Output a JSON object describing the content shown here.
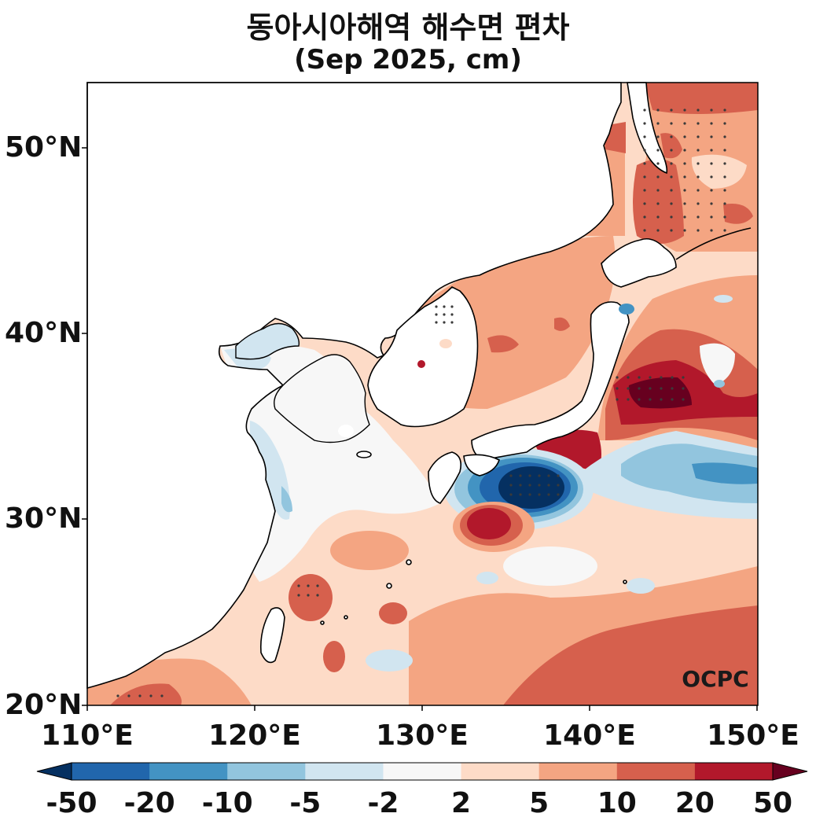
{
  "title": {
    "line1": "동아시아해역 해수면 편차",
    "line2": "(Sep 2025, cm)"
  },
  "axes": {
    "lat_labels": [
      "50°N",
      "40°N",
      "30°N",
      "20°N"
    ],
    "lon_labels": [
      "110°E",
      "120°E",
      "130°E",
      "140°E",
      "150°E"
    ],
    "lat_range": [
      20,
      53.5
    ],
    "lon_range": [
      110,
      150
    ]
  },
  "watermark": "OCPC",
  "colorbar": {
    "ticks": [
      "-50",
      "-20",
      "-10",
      "-5",
      "-2",
      "2",
      "5",
      "10",
      "20",
      "50"
    ],
    "colors": [
      "#053061",
      "#2166ac",
      "#4393c3",
      "#92c5de",
      "#d1e5f0",
      "#f7f7f7",
      "#fddbc7",
      "#f4a582",
      "#d6604d",
      "#b2182b",
      "#67001f"
    ]
  },
  "colors": {
    "land": "#ffffff",
    "coast": "#000000",
    "stipple": "#3a3a3a"
  }
}
